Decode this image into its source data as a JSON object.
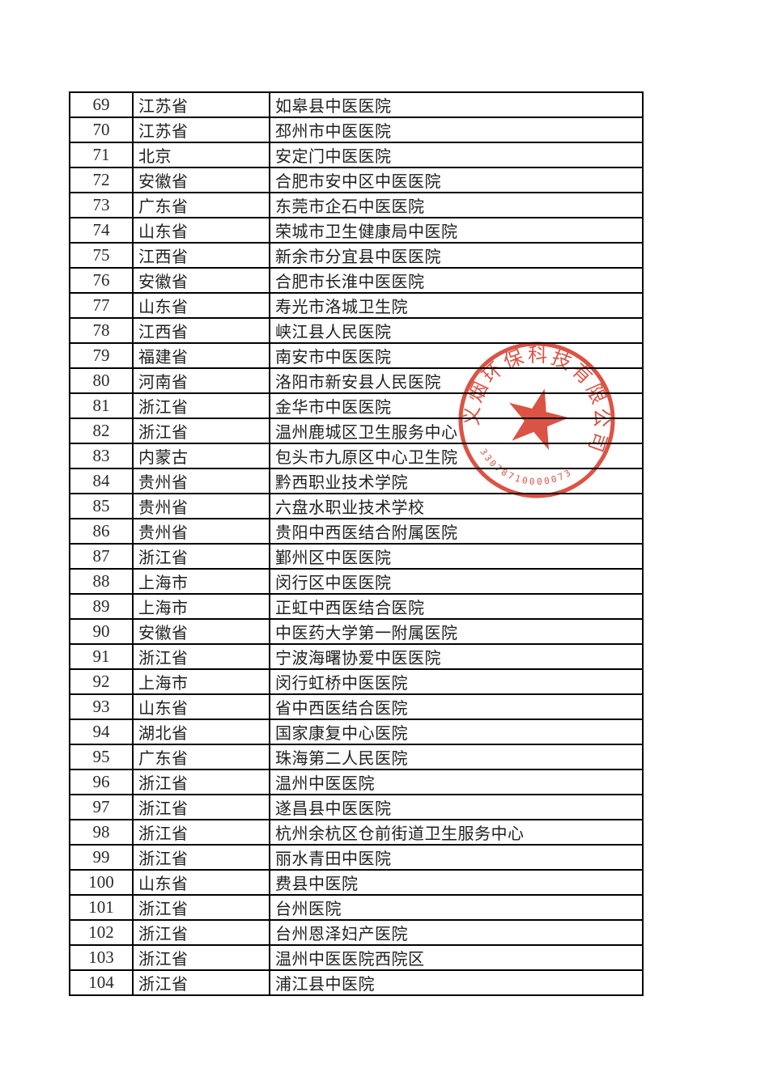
{
  "table": {
    "rows": [
      {
        "num": "69",
        "province": "江苏省",
        "name": "如皋县中医医院"
      },
      {
        "num": "70",
        "province": "江苏省",
        "name": "邳州市中医医院"
      },
      {
        "num": "71",
        "province": "北京",
        "name": "安定门中医医院"
      },
      {
        "num": "72",
        "province": "安徽省",
        "name": "合肥市安中区中医医院"
      },
      {
        "num": "73",
        "province": "广东省",
        "name": "东莞市企石中医医院"
      },
      {
        "num": "74",
        "province": "山东省",
        "name": "荣城市卫生健康局中医院"
      },
      {
        "num": "75",
        "province": "江西省",
        "name": "新余市分宜县中医医院"
      },
      {
        "num": "76",
        "province": "安徽省",
        "name": "合肥市长淮中医医院"
      },
      {
        "num": "77",
        "province": "山东省",
        "name": "寿光市洛城卫生院"
      },
      {
        "num": "78",
        "province": "江西省",
        "name": "峡江县人民医院"
      },
      {
        "num": "79",
        "province": "福建省",
        "name": "南安市中医医院"
      },
      {
        "num": "80",
        "province": "河南省",
        "name": "洛阳市新安县人民医院"
      },
      {
        "num": "81",
        "province": "浙江省",
        "name": "金华市中医医院"
      },
      {
        "num": "82",
        "province": "浙江省",
        "name": "温州鹿城区卫生服务中心"
      },
      {
        "num": "83",
        "province": "内蒙古",
        "name": "包头市九原区中心卫生院"
      },
      {
        "num": "84",
        "province": "贵州省",
        "name": "黔西职业技术学院"
      },
      {
        "num": "85",
        "province": "贵州省",
        "name": "六盘水职业技术学校"
      },
      {
        "num": "86",
        "province": "贵州省",
        "name": "贵阳中西医结合附属医院"
      },
      {
        "num": "87",
        "province": "浙江省",
        "name": "鄞州区中医医院"
      },
      {
        "num": "88",
        "province": "上海市",
        "name": "闵行区中医医院"
      },
      {
        "num": "89",
        "province": "上海市",
        "name": "正虹中西医结合医院"
      },
      {
        "num": "90",
        "province": "安徽省",
        "name": "中医药大学第一附属医院"
      },
      {
        "num": "91",
        "province": "浙江省",
        "name": "宁波海曙协爱中医医院"
      },
      {
        "num": "92",
        "province": "上海市",
        "name": "闵行虹桥中医医院"
      },
      {
        "num": "93",
        "province": "山东省",
        "name": "省中西医结合医院"
      },
      {
        "num": "94",
        "province": "湖北省",
        "name": "国家康复中心医院"
      },
      {
        "num": "95",
        "province": "广东省",
        "name": "珠海第二人民医院"
      },
      {
        "num": "96",
        "province": "浙江省",
        "name": "温州中医医院"
      },
      {
        "num": "97",
        "province": "浙江省",
        "name": "遂昌县中医医院"
      },
      {
        "num": "98",
        "province": "浙江省",
        "name": "杭州余杭区仓前街道卫生服务中心"
      },
      {
        "num": "99",
        "province": "浙江省",
        "name": "丽水青田中医院"
      },
      {
        "num": "100",
        "province": "山东省",
        "name": "费县中医院"
      },
      {
        "num": "101",
        "province": "浙江省",
        "name": "台州医院"
      },
      {
        "num": "102",
        "province": "浙江省",
        "name": "台州恩泽妇产医院"
      },
      {
        "num": "103",
        "province": "浙江省",
        "name": "温州中医医院西院区"
      },
      {
        "num": "104",
        "province": "浙江省",
        "name": "浦江县中医院"
      }
    ]
  },
  "stamp": {
    "arc_text": "义烟环保科技有限公司",
    "serial_number": "33078710000073",
    "color": "#d63b2a"
  }
}
